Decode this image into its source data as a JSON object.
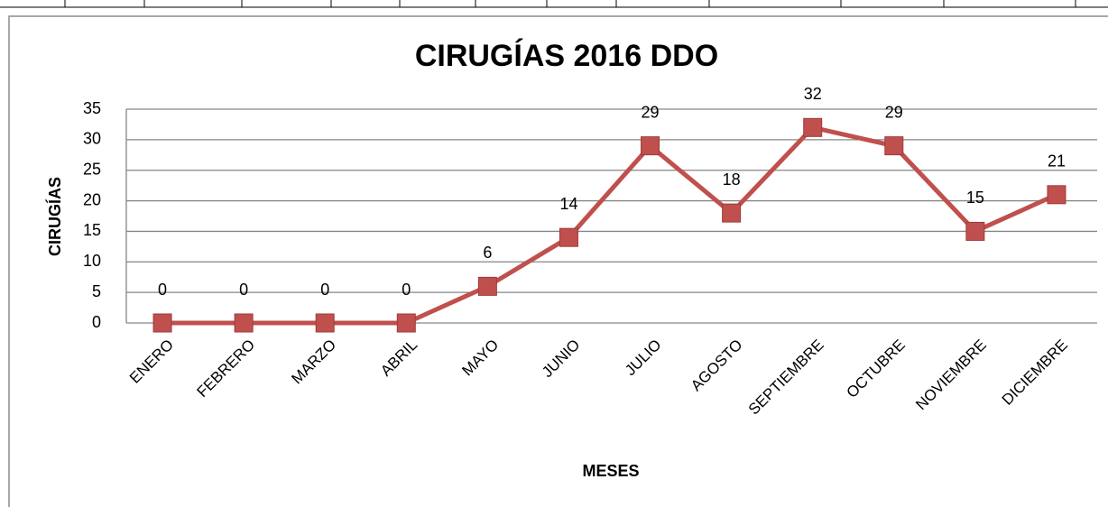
{
  "chart_data": {
    "type": "line",
    "title": "CIRUGÍAS 2016 DDO",
    "x_label": "MESES",
    "y_label": "CIRUGÍAS",
    "categories": [
      "ENERO",
      "FEBRERO",
      "MARZO",
      "ABRIL",
      "MAYO",
      "JUNIO",
      "JULIO",
      "AGOSTO",
      "SEPTIEMBRE",
      "OCTUBRE",
      "NOVIEMBRE",
      "DICIEMBRE"
    ],
    "values": [
      0,
      0,
      0,
      0,
      6,
      14,
      29,
      18,
      32,
      29,
      15,
      21
    ],
    "color": "#c0504d",
    "ylim": [
      0,
      35
    ],
    "yticks": [
      0,
      5,
      10,
      15,
      20,
      25,
      30,
      35
    ],
    "grid": true
  }
}
